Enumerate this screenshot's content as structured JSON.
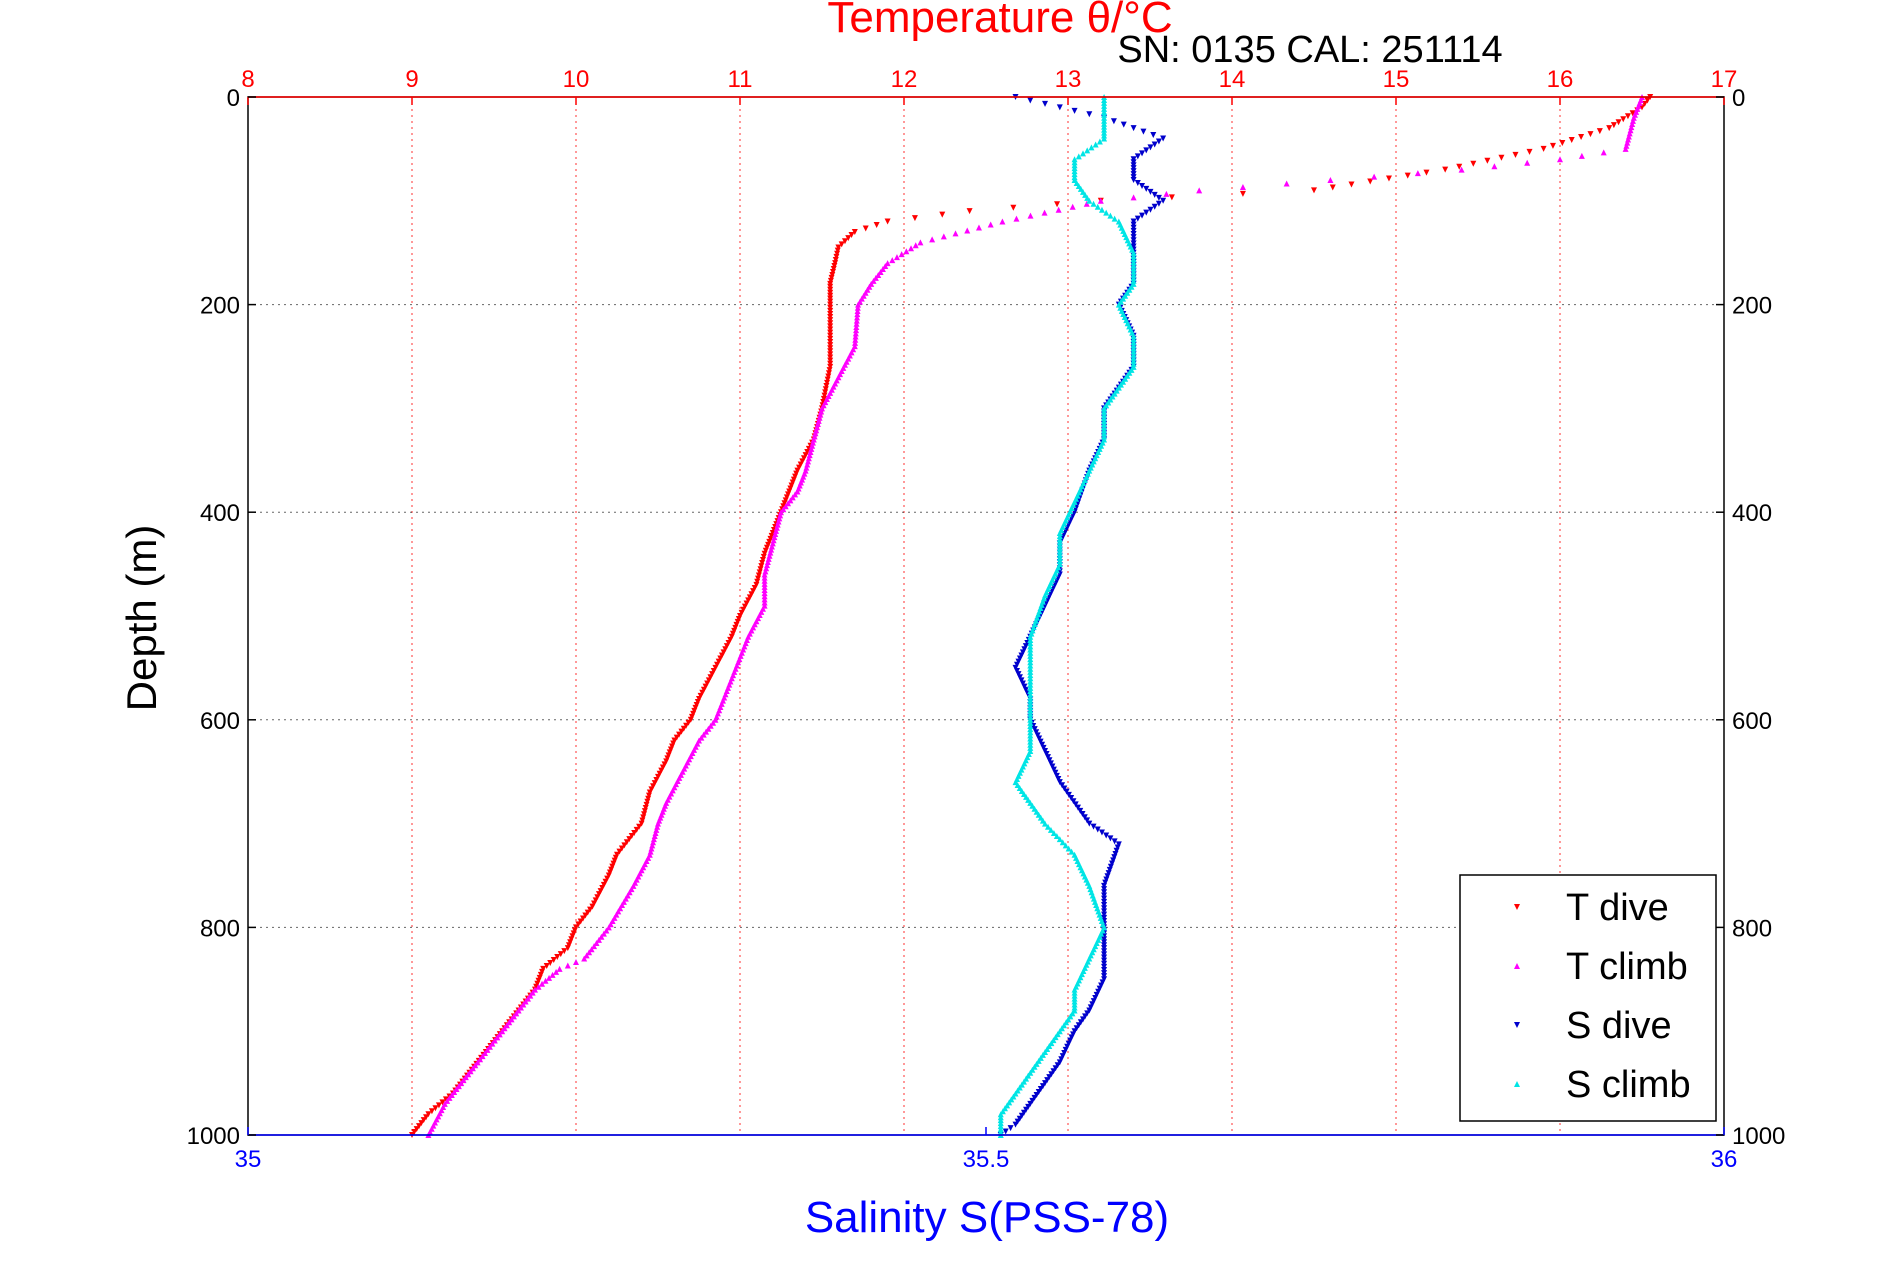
{
  "chart_data": {
    "type": "scatter",
    "title": "Temperature θ/°C",
    "subtitle": "SN: 0135  CAL: 251114",
    "ylabel": "Depth (m)",
    "xlabel_bottom": "Salinity S(PSS-78)",
    "xlabel_top": "Temperature θ/°C",
    "ylim": [
      0,
      1000
    ],
    "y_reversed": true,
    "yticks": [
      0,
      200,
      400,
      600,
      800,
      1000
    ],
    "x_top_lim": [
      8,
      17
    ],
    "x_top_ticks": [
      8,
      9,
      10,
      11,
      12,
      13,
      14,
      15,
      16,
      17
    ],
    "x_bottom_lim": [
      35,
      36
    ],
    "x_bottom_ticks": [
      35,
      35.5,
      36
    ],
    "grid": true,
    "legend_position": "bottom-right",
    "colors": {
      "temperature_axis": "#ff0000",
      "salinity_axis": "#0000ff",
      "t_dive": "#ff0000",
      "t_climb": "#ff00ff",
      "s_dive": "#0000cc",
      "s_climb": "#00e5e5"
    },
    "series": [
      {
        "name": "T dive",
        "axis": "temperature",
        "color": "#ff0000",
        "points": [
          [
            16.55,
            0
          ],
          [
            16.5,
            10
          ],
          [
            16.3,
            30
          ],
          [
            15.9,
            50
          ],
          [
            15.3,
            70
          ],
          [
            14.5,
            90
          ],
          [
            13.2,
            100
          ],
          [
            12.4,
            110
          ],
          [
            11.9,
            120
          ],
          [
            11.7,
            130
          ],
          [
            11.6,
            145
          ],
          [
            11.58,
            160
          ],
          [
            11.55,
            180
          ],
          [
            11.55,
            200
          ],
          [
            11.55,
            230
          ],
          [
            11.55,
            260
          ],
          [
            11.5,
            300
          ],
          [
            11.45,
            330
          ],
          [
            11.35,
            360
          ],
          [
            11.3,
            380
          ],
          [
            11.25,
            400
          ],
          [
            11.2,
            420
          ],
          [
            11.15,
            440
          ],
          [
            11.1,
            470
          ],
          [
            11.0,
            500
          ],
          [
            10.95,
            520
          ],
          [
            10.85,
            550
          ],
          [
            10.75,
            580
          ],
          [
            10.7,
            600
          ],
          [
            10.6,
            620
          ],
          [
            10.55,
            640
          ],
          [
            10.45,
            670
          ],
          [
            10.4,
            700
          ],
          [
            10.25,
            730
          ],
          [
            10.2,
            750
          ],
          [
            10.1,
            780
          ],
          [
            10.0,
            800
          ],
          [
            9.95,
            820
          ],
          [
            9.8,
            840
          ],
          [
            9.75,
            860
          ],
          [
            9.65,
            880
          ],
          [
            9.55,
            900
          ],
          [
            9.45,
            920
          ],
          [
            9.35,
            940
          ],
          [
            9.25,
            960
          ],
          [
            9.1,
            980
          ],
          [
            9.0,
            1000
          ]
        ]
      },
      {
        "name": "T climb",
        "axis": "temperature",
        "color": "#ff00ff",
        "points": [
          [
            16.5,
            0
          ],
          [
            16.45,
            20
          ],
          [
            16.4,
            50
          ],
          [
            16.0,
            60
          ],
          [
            15.4,
            70
          ],
          [
            14.6,
            80
          ],
          [
            13.8,
            90
          ],
          [
            13.2,
            100
          ],
          [
            12.6,
            120
          ],
          [
            12.1,
            140
          ],
          [
            11.9,
            160
          ],
          [
            11.8,
            180
          ],
          [
            11.72,
            200
          ],
          [
            11.7,
            240
          ],
          [
            11.6,
            270
          ],
          [
            11.5,
            300
          ],
          [
            11.45,
            330
          ],
          [
            11.4,
            360
          ],
          [
            11.35,
            380
          ],
          [
            11.25,
            400
          ],
          [
            11.2,
            430
          ],
          [
            11.15,
            460
          ],
          [
            11.15,
            490
          ],
          [
            11.05,
            520
          ],
          [
            10.95,
            560
          ],
          [
            10.85,
            600
          ],
          [
            10.75,
            620
          ],
          [
            10.65,
            650
          ],
          [
            10.55,
            680
          ],
          [
            10.5,
            700
          ],
          [
            10.45,
            730
          ],
          [
            10.35,
            760
          ],
          [
            10.2,
            800
          ],
          [
            10.05,
            830
          ],
          [
            9.9,
            840
          ],
          [
            9.75,
            860
          ],
          [
            9.65,
            880
          ],
          [
            9.55,
            900
          ],
          [
            9.4,
            930
          ],
          [
            9.3,
            950
          ],
          [
            9.2,
            970
          ],
          [
            9.1,
            1000
          ]
        ]
      },
      {
        "name": "S dive",
        "axis": "salinity",
        "color": "#0000cc",
        "points": [
          [
            35.52,
            0
          ],
          [
            35.55,
            10
          ],
          [
            35.58,
            20
          ],
          [
            35.6,
            30
          ],
          [
            35.62,
            40
          ],
          [
            35.6,
            60
          ],
          [
            35.6,
            80
          ],
          [
            35.62,
            100
          ],
          [
            35.6,
            120
          ],
          [
            35.6,
            150
          ],
          [
            35.6,
            180
          ],
          [
            35.59,
            200
          ],
          [
            35.6,
            230
          ],
          [
            35.6,
            260
          ],
          [
            35.59,
            280
          ],
          [
            35.58,
            300
          ],
          [
            35.58,
            330
          ],
          [
            35.57,
            360
          ],
          [
            35.56,
            400
          ],
          [
            35.55,
            430
          ],
          [
            35.55,
            460
          ],
          [
            35.54,
            490
          ],
          [
            35.53,
            520
          ],
          [
            35.52,
            550
          ],
          [
            35.53,
            580
          ],
          [
            35.53,
            600
          ],
          [
            35.54,
            630
          ],
          [
            35.55,
            660
          ],
          [
            35.57,
            700
          ],
          [
            35.59,
            720
          ],
          [
            35.58,
            760
          ],
          [
            35.58,
            800
          ],
          [
            35.58,
            820
          ],
          [
            35.58,
            850
          ],
          [
            35.57,
            880
          ],
          [
            35.56,
            900
          ],
          [
            35.55,
            930
          ],
          [
            35.54,
            950
          ],
          [
            35.53,
            970
          ],
          [
            35.52,
            990
          ],
          [
            35.51,
            1000
          ]
        ]
      },
      {
        "name": "S climb",
        "axis": "salinity",
        "color": "#00e5e5",
        "points": [
          [
            35.58,
            0
          ],
          [
            35.58,
            20
          ],
          [
            35.58,
            40
          ],
          [
            35.56,
            60
          ],
          [
            35.56,
            80
          ],
          [
            35.57,
            100
          ],
          [
            35.59,
            120
          ],
          [
            35.6,
            150
          ],
          [
            35.6,
            180
          ],
          [
            35.59,
            200
          ],
          [
            35.6,
            230
          ],
          [
            35.6,
            260
          ],
          [
            35.59,
            280
          ],
          [
            35.58,
            300
          ],
          [
            35.58,
            330
          ],
          [
            35.57,
            360
          ],
          [
            35.56,
            390
          ],
          [
            35.55,
            420
          ],
          [
            35.55,
            450
          ],
          [
            35.54,
            480
          ],
          [
            35.53,
            520
          ],
          [
            35.53,
            560
          ],
          [
            35.53,
            600
          ],
          [
            35.53,
            630
          ],
          [
            35.52,
            660
          ],
          [
            35.53,
            680
          ],
          [
            35.54,
            700
          ],
          [
            35.56,
            730
          ],
          [
            35.57,
            760
          ],
          [
            35.58,
            800
          ],
          [
            35.57,
            830
          ],
          [
            35.56,
            860
          ],
          [
            35.56,
            880
          ],
          [
            35.55,
            900
          ],
          [
            35.54,
            920
          ],
          [
            35.53,
            940
          ],
          [
            35.52,
            960
          ],
          [
            35.51,
            980
          ],
          [
            35.51,
            1000
          ]
        ]
      }
    ]
  }
}
